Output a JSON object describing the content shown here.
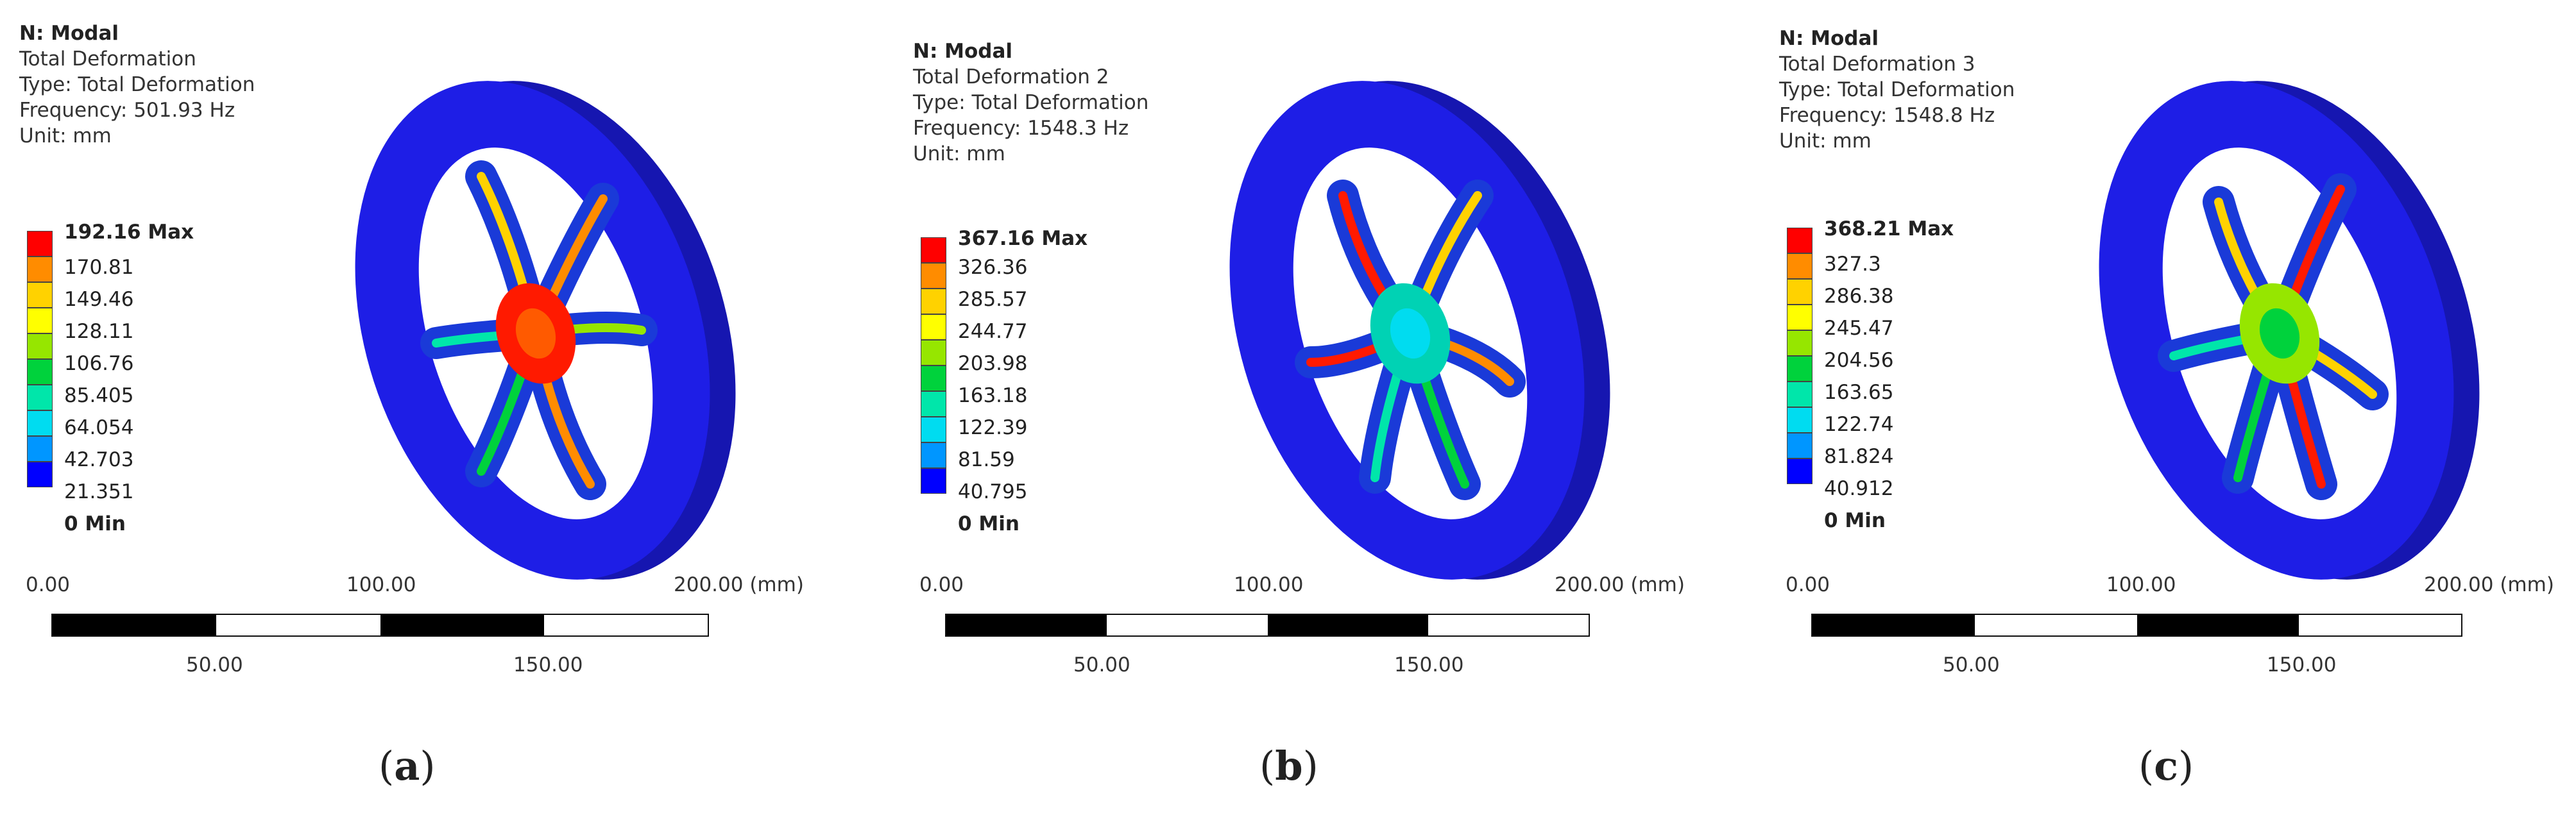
{
  "legend_colors": [
    "#ff0000",
    "#ff8c00",
    "#ffd200",
    "#ffff00",
    "#96e600",
    "#00d23c",
    "#00e6aa",
    "#00dcf0",
    "#0096ff",
    "#0000ff"
  ],
  "panels": [
    {
      "label": "a",
      "study": "N: Modal",
      "result": "Total Deformation",
      "type": "Type: Total Deformation",
      "frequency": "Frequency: 501.93 Hz",
      "unit": "Unit: mm",
      "legend_values": [
        "192.16 Max",
        "170.81",
        "149.46",
        "128.11",
        "106.76",
        "85.405",
        "64.054",
        "42.703",
        "21.351",
        "0 Min"
      ],
      "scale": {
        "top": [
          "0.00",
          "100.00",
          "200.00 (mm)"
        ],
        "bottom": [
          "50.00",
          "150.00"
        ]
      }
    },
    {
      "label": "b",
      "study": "N: Modal",
      "result": "Total Deformation 2",
      "type": "Type: Total Deformation",
      "frequency": "Frequency: 1548.3 Hz",
      "unit": "Unit: mm",
      "legend_values": [
        "367.16 Max",
        "326.36",
        "285.57",
        "244.77",
        "203.98",
        "163.18",
        "122.39",
        "81.59",
        "40.795",
        "0 Min"
      ],
      "scale": {
        "top": [
          "0.00",
          "100.00",
          "200.00 (mm)"
        ],
        "bottom": [
          "50.00",
          "150.00"
        ]
      }
    },
    {
      "label": "c",
      "study": "N: Modal",
      "result": "Total Deformation 3",
      "type": "Type: Total Deformation",
      "frequency": "Frequency: 1548.8 Hz",
      "unit": "Unit: mm",
      "legend_values": [
        "368.21 Max",
        "327.3",
        "286.38",
        "245.47",
        "204.56",
        "163.65",
        "122.74",
        "81.824",
        "40.912",
        "0 Min"
      ],
      "scale": {
        "top": [
          "0.00",
          "100.00",
          "200.00 (mm)"
        ],
        "bottom": [
          "50.00",
          "150.00"
        ]
      }
    }
  ]
}
